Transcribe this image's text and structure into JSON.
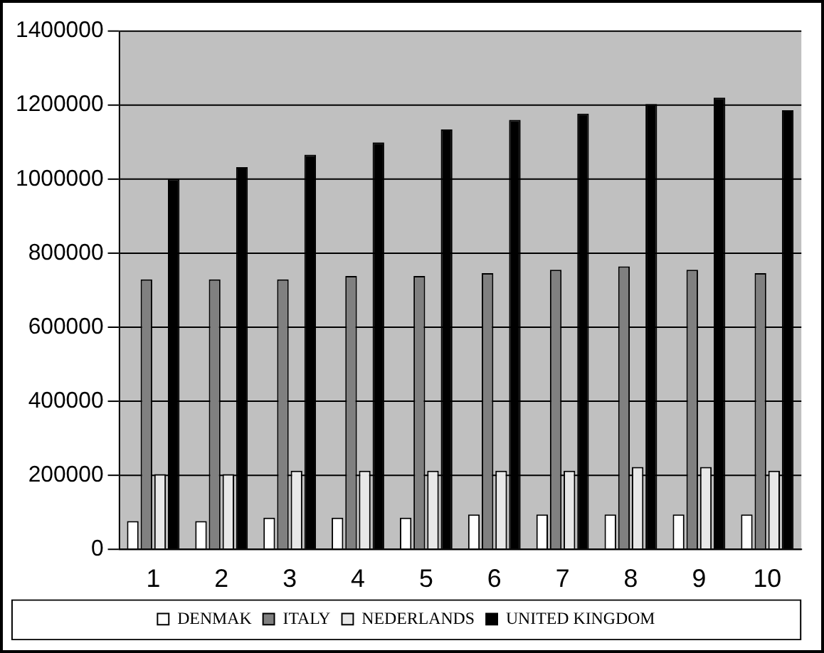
{
  "chart_data": {
    "type": "bar",
    "categories": [
      "1",
      "2",
      "3",
      "4",
      "5",
      "6",
      "7",
      "8",
      "9",
      "10"
    ],
    "series": [
      {
        "name": "DENMAK",
        "color": "#ffffff",
        "values": [
          76000,
          76000,
          85000,
          85000,
          85000,
          94000,
          94000,
          94000,
          94000,
          94000
        ]
      },
      {
        "name": "ITALY",
        "color": "#808080",
        "values": [
          729000,
          729000,
          729000,
          738000,
          738000,
          746000,
          755000,
          764000,
          755000,
          746000
        ]
      },
      {
        "name": "NEDERLANDS",
        "color": "#e8e8e8",
        "values": [
          203000,
          203000,
          212000,
          212000,
          212000,
          212000,
          212000,
          222000,
          222000,
          212000
        ]
      },
      {
        "name": "UNITED KINGDOM",
        "color": "#000000",
        "values": [
          1000000,
          1032000,
          1066000,
          1099000,
          1134000,
          1160000,
          1177000,
          1203000,
          1220000,
          1186000
        ]
      }
    ],
    "ylim": [
      0,
      1400000
    ],
    "yticks": [
      0,
      200000,
      400000,
      600000,
      800000,
      1000000,
      1200000,
      1400000
    ],
    "grid": "y",
    "legend": "bottom"
  }
}
